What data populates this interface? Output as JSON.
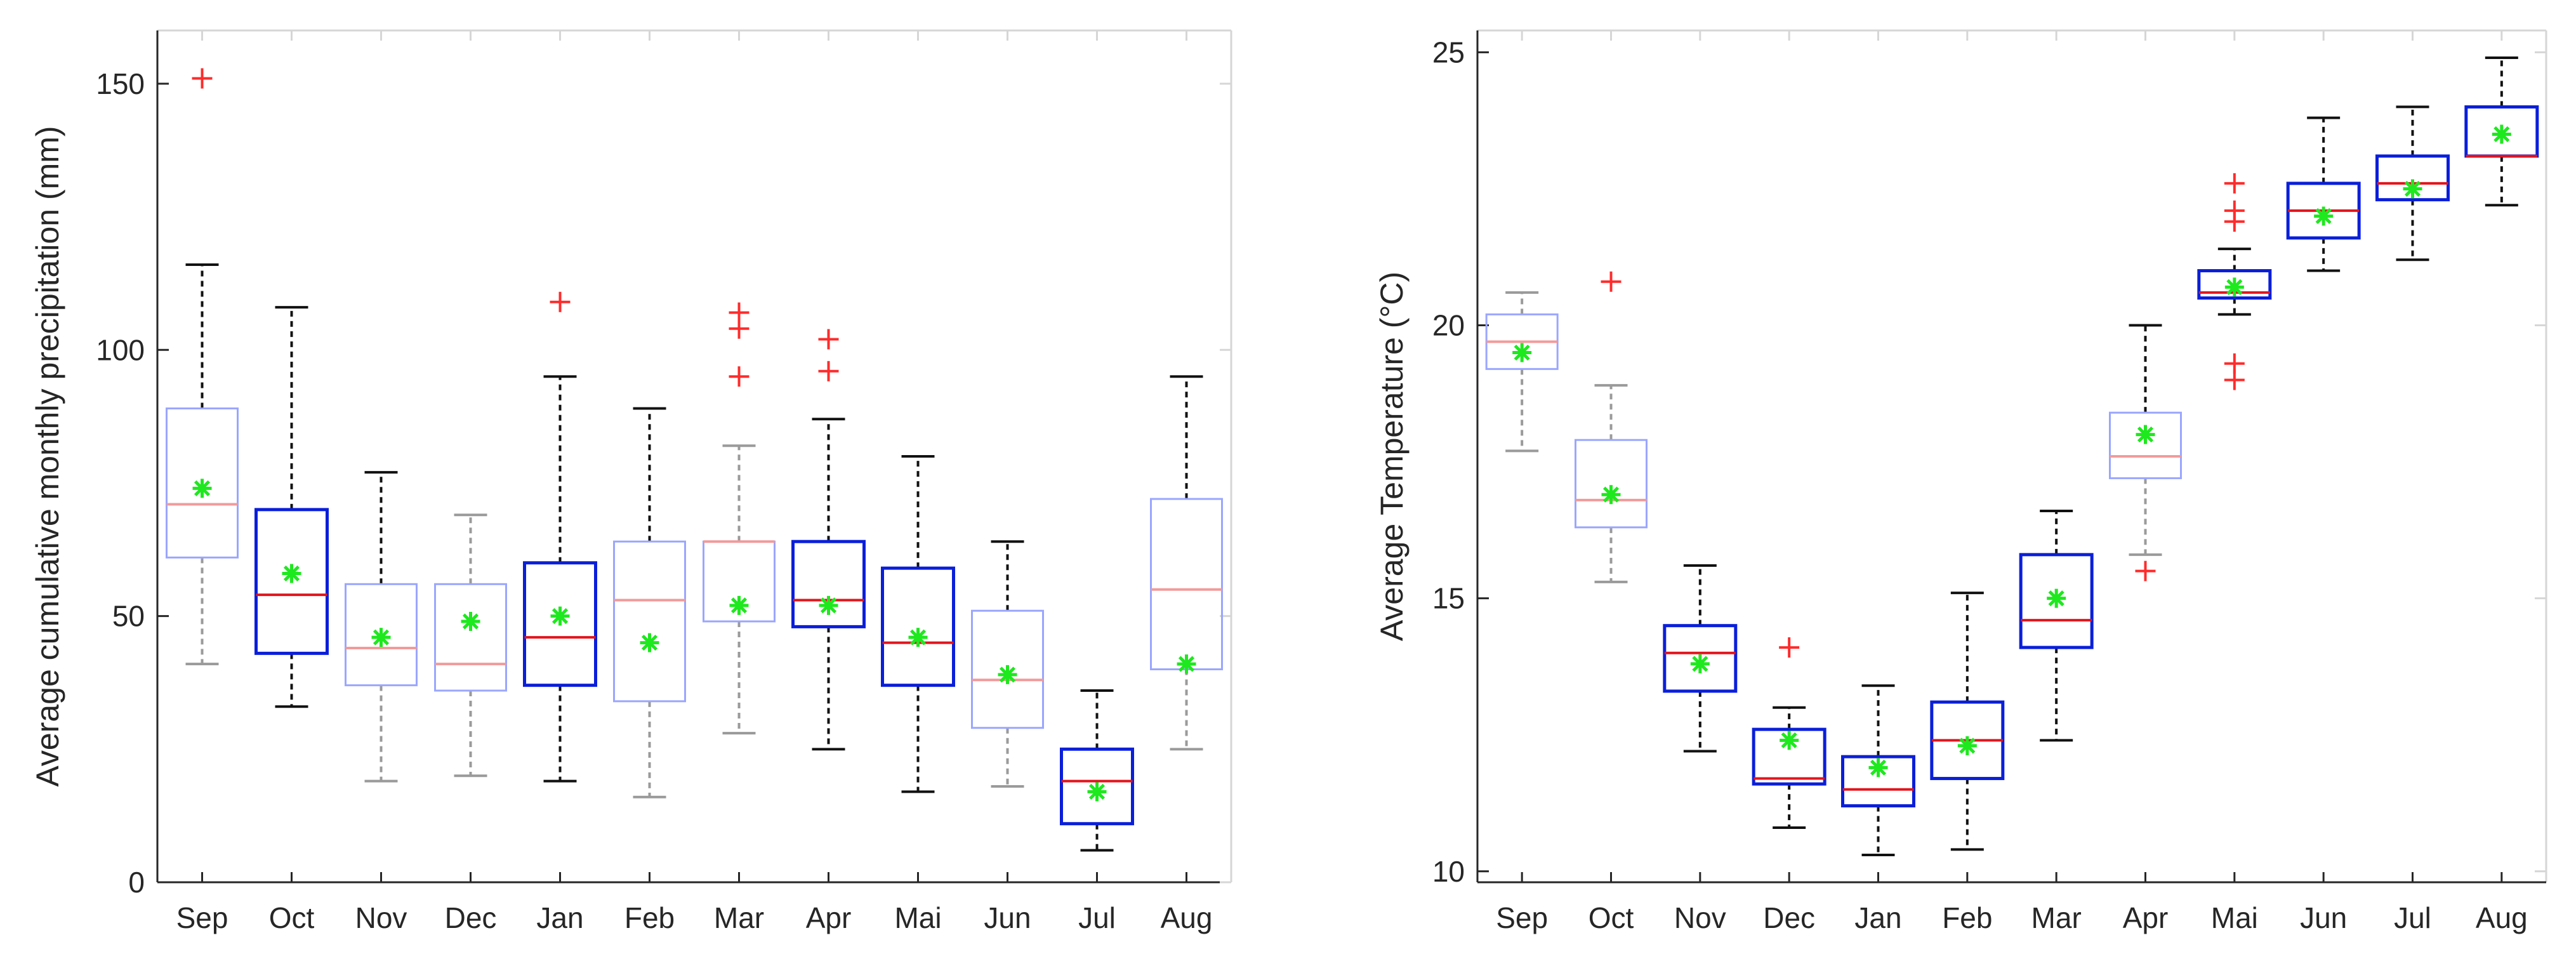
{
  "chart_data": [
    {
      "type": "box",
      "title": "",
      "xlabel": "",
      "ylabel": "Average cumulative monthly precipitation (mm)",
      "ylim": [
        0,
        160
      ],
      "yticks": [
        0,
        50,
        100,
        150
      ],
      "categories": [
        "Sep",
        "Oct",
        "Nov",
        "Dec",
        "Jan",
        "Feb",
        "Mar",
        "Apr",
        "Mai",
        "Jun",
        "Jul",
        "Aug"
      ],
      "boxes": [
        {
          "q1": 61,
          "median": 71,
          "q3": 89,
          "whisker_low": 41,
          "whisker_high": 116,
          "mean": 74,
          "outliers": [
            151
          ],
          "style": "faded-top"
        },
        {
          "q1": 43,
          "median": 54,
          "q3": 70,
          "whisker_low": 33,
          "whisker_high": 108,
          "mean": 58,
          "outliers": [],
          "style": "bold"
        },
        {
          "q1": 37,
          "median": 44,
          "q3": 56,
          "whisker_low": 19,
          "whisker_high": 77,
          "mean": 46,
          "outliers": [],
          "style": "faded-top"
        },
        {
          "q1": 36,
          "median": 41,
          "q3": 56,
          "whisker_low": 20,
          "whisker_high": 69,
          "mean": 49,
          "outliers": [],
          "style": "faded"
        },
        {
          "q1": 37,
          "median": 46,
          "q3": 60,
          "whisker_low": 19,
          "whisker_high": 95,
          "mean": 50,
          "outliers": [
            109
          ],
          "style": "bold"
        },
        {
          "q1": 34,
          "median": 53,
          "q3": 64,
          "whisker_low": 16,
          "whisker_high": 89,
          "mean": 45,
          "outliers": [],
          "style": "faded-top"
        },
        {
          "q1": 49,
          "median": 64,
          "q3": 64,
          "whisker_low": 28,
          "whisker_high": 82,
          "mean": 52,
          "outliers": [
            95,
            104,
            107
          ],
          "style": "faded"
        },
        {
          "q1": 48,
          "median": 53,
          "q3": 64,
          "whisker_low": 25,
          "whisker_high": 87,
          "mean": 52,
          "outliers": [
            96,
            102
          ],
          "style": "bold"
        },
        {
          "q1": 37,
          "median": 45,
          "q3": 59,
          "whisker_low": 17,
          "whisker_high": 80,
          "mean": 46,
          "outliers": [],
          "style": "bold"
        },
        {
          "q1": 29,
          "median": 38,
          "q3": 51,
          "whisker_low": 18,
          "whisker_high": 64,
          "mean": 39,
          "outliers": [],
          "style": "faded-top"
        },
        {
          "q1": 11,
          "median": 19,
          "q3": 25,
          "whisker_low": 6,
          "whisker_high": 36,
          "mean": 17,
          "outliers": [],
          "style": "bold"
        },
        {
          "q1": 40,
          "median": 55,
          "q3": 72,
          "whisker_low": 25,
          "whisker_high": 95,
          "mean": 41,
          "outliers": [],
          "style": "faded-top"
        }
      ]
    },
    {
      "type": "box",
      "title": "",
      "xlabel": "",
      "ylabel": "Average Temperature (°C)",
      "ylim": [
        9.8,
        25.4
      ],
      "yticks": [
        10,
        15,
        20,
        25
      ],
      "categories": [
        "Sep",
        "Oct",
        "Nov",
        "Dec",
        "Jan",
        "Feb",
        "Mar",
        "Apr",
        "Mai",
        "Jun",
        "Jul",
        "Aug"
      ],
      "boxes": [
        {
          "q1": 19.2,
          "median": 19.7,
          "q3": 20.2,
          "whisker_low": 17.7,
          "whisker_high": 20.6,
          "mean": 19.5,
          "outliers": [],
          "style": "faded"
        },
        {
          "q1": 16.3,
          "median": 16.8,
          "q3": 17.9,
          "whisker_low": 15.3,
          "whisker_high": 18.9,
          "mean": 16.9,
          "outliers": [
            20.8
          ],
          "style": "faded"
        },
        {
          "q1": 13.3,
          "median": 14.0,
          "q3": 14.5,
          "whisker_low": 12.2,
          "whisker_high": 15.6,
          "mean": 13.8,
          "outliers": [],
          "style": "bold"
        },
        {
          "q1": 11.6,
          "median": 11.7,
          "q3": 12.6,
          "whisker_low": 10.8,
          "whisker_high": 13.0,
          "mean": 12.4,
          "outliers": [
            14.1
          ],
          "style": "bold"
        },
        {
          "q1": 11.2,
          "median": 11.5,
          "q3": 12.1,
          "whisker_low": 10.3,
          "whisker_high": 13.4,
          "mean": 11.9,
          "outliers": [],
          "style": "bold"
        },
        {
          "q1": 11.7,
          "median": 12.4,
          "q3": 13.1,
          "whisker_low": 10.4,
          "whisker_high": 15.1,
          "mean": 12.3,
          "outliers": [],
          "style": "bold"
        },
        {
          "q1": 14.1,
          "median": 14.6,
          "q3": 15.8,
          "whisker_low": 12.4,
          "whisker_high": 16.6,
          "mean": 15.0,
          "outliers": [],
          "style": "bold"
        },
        {
          "q1": 17.2,
          "median": 17.6,
          "q3": 18.4,
          "whisker_low": 15.8,
          "whisker_high": 20.0,
          "mean": 18.0,
          "outliers": [
            15.5
          ],
          "style": "faded-top"
        },
        {
          "q1": 20.5,
          "median": 20.6,
          "q3": 21.0,
          "whisker_low": 20.2,
          "whisker_high": 21.4,
          "mean": 20.7,
          "outliers": [
            22.6,
            22.1,
            21.9,
            19.3,
            19.0
          ],
          "style": "bold"
        },
        {
          "q1": 21.6,
          "median": 22.1,
          "q3": 22.6,
          "whisker_low": 21.0,
          "whisker_high": 23.8,
          "mean": 22.0,
          "outliers": [],
          "style": "bold"
        },
        {
          "q1": 22.3,
          "median": 22.6,
          "q3": 23.1,
          "whisker_low": 21.2,
          "whisker_high": 24.0,
          "mean": 22.5,
          "outliers": [],
          "style": "bold"
        },
        {
          "q1": 23.1,
          "median": 23.1,
          "q3": 24.0,
          "whisker_low": 22.2,
          "whisker_high": 24.9,
          "mean": 23.5,
          "outliers": [],
          "style": "bold"
        }
      ]
    }
  ],
  "colors": {
    "box_bold": "#0a1fd9",
    "box_faded": "#9aa6ff",
    "median_bold": "#e3141c",
    "median_faded": "#f29a9a",
    "whisker_bold": "#111111",
    "whisker_faded": "#9a9a9a",
    "mean_marker": "#1ee81e",
    "outlier": "#ff2b2b",
    "axis": "#262626",
    "frame_faded": "#d6d6d6"
  }
}
